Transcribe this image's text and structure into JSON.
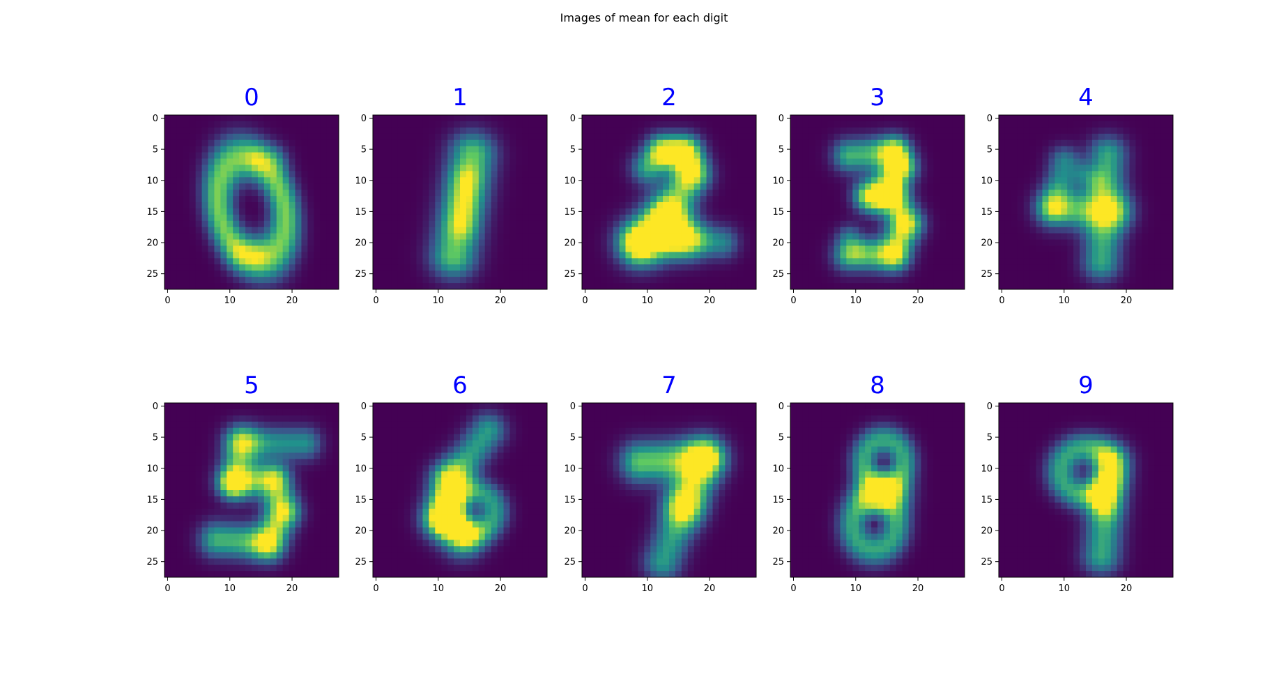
{
  "figure": {
    "suptitle": "Images of mean for each digit",
    "title_color": "#0000ff",
    "colormap": "viridis"
  },
  "chart_data": {
    "type": "heatmap",
    "title": "Images of mean for each digit",
    "image_size": [
      28,
      28
    ],
    "xticks": [
      0,
      10,
      20
    ],
    "yticks": [
      0,
      5,
      10,
      15,
      20,
      25
    ],
    "xlim": [
      -0.5,
      27.5
    ],
    "ylim": [
      27.5,
      -0.5
    ],
    "colors": [
      "#440154",
      "#3b528b",
      "#21918c",
      "#5ec962",
      "#fde725"
    ],
    "panels": [
      {
        "label": "0"
      },
      {
        "label": "1"
      },
      {
        "label": "2"
      },
      {
        "label": "3"
      },
      {
        "label": "4"
      },
      {
        "label": "5"
      },
      {
        "label": "6"
      },
      {
        "label": "7"
      },
      {
        "label": "8"
      },
      {
        "label": "9"
      }
    ]
  }
}
